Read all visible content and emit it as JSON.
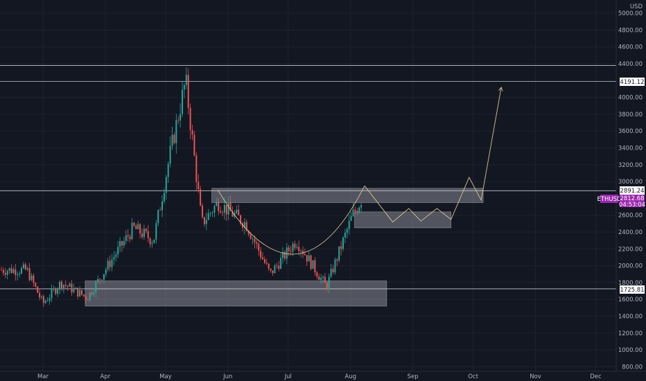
{
  "chart_data": {
    "type": "candlestick",
    "symbol": "ETHUSD",
    "currency": "USD",
    "y_ticks": [
      "5000.00",
      "4800.00",
      "4600.00",
      "4400.00",
      "4000.00",
      "3800.00",
      "3600.00",
      "3400.00",
      "3200.00",
      "3000.00",
      "2600.00",
      "2400.00",
      "2200.00",
      "2000.00",
      "1800.00",
      "1600.00",
      "1400.00",
      "1200.00",
      "1000.00",
      "800.00"
    ],
    "x_ticks": [
      "Mar",
      "Apr",
      "May",
      "Jun",
      "Jul",
      "Aug",
      "Sep",
      "Oct",
      "Nov",
      "Dec"
    ],
    "ylim": [
      800,
      5100
    ],
    "price_tags": {
      "line_4191": "4191.12",
      "line_2891": "2891.24",
      "current_symbol": "ETHUSD",
      "current_price": "2812.68",
      "current_time": "04:53:04",
      "line_1725": "1725.81"
    },
    "horizontal_lines": [
      4380,
      4191.12,
      2891.24,
      1725.81
    ],
    "zones": [
      {
        "x": [
          "2021-05-24",
          "2021-10-06"
        ],
        "y": [
          2750,
          2920
        ]
      },
      {
        "x": [
          "2021-08-03",
          "2021-09-20"
        ],
        "y": [
          2450,
          2640
        ]
      },
      {
        "x": [
          "2021-03-22",
          "2021-08-19"
        ],
        "y": [
          1520,
          1820
        ]
      }
    ],
    "candles_ohlc_summary": [
      {
        "date": "2021-02-21",
        "close": 1950
      },
      {
        "date": "2021-03-01",
        "close": 1550
      },
      {
        "date": "2021-03-10",
        "close": 1800
      },
      {
        "date": "2021-03-23",
        "close": 1620
      },
      {
        "date": "2021-04-05",
        "close": 2100
      },
      {
        "date": "2021-04-15",
        "close": 2450
      },
      {
        "date": "2021-04-25",
        "close": 2300
      },
      {
        "date": "2021-05-03",
        "close": 3300
      },
      {
        "date": "2021-05-11",
        "close": 4200
      },
      {
        "date": "2021-05-19",
        "close": 2500
      },
      {
        "date": "2021-05-27",
        "close": 2750
      },
      {
        "date": "2021-06-10",
        "close": 2500
      },
      {
        "date": "2021-06-22",
        "close": 1900
      },
      {
        "date": "2021-07-05",
        "close": 2300
      },
      {
        "date": "2021-07-20",
        "close": 1750
      },
      {
        "date": "2021-08-02",
        "close": 2600
      },
      {
        "date": "2021-08-07",
        "close": 2812.68
      }
    ]
  }
}
